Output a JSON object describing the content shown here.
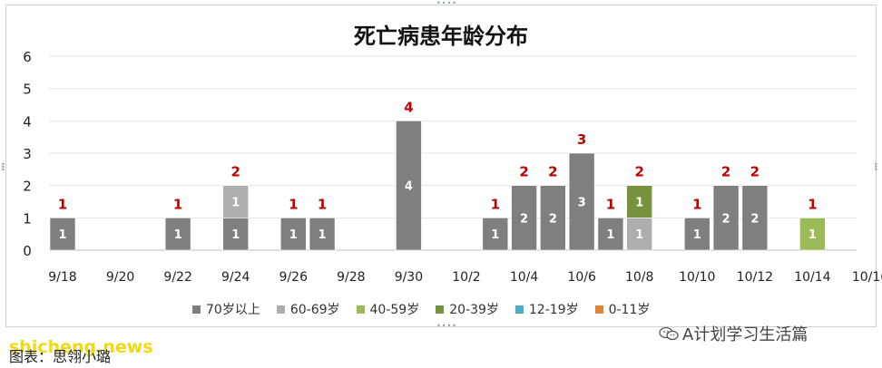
{
  "chart_data": {
    "type": "bar",
    "title": "死亡病患年龄分布",
    "ylim": [
      0,
      6
    ],
    "yticks": [
      "0",
      "1",
      "2",
      "3",
      "4",
      "5",
      "6"
    ],
    "xtick_labels": [
      "9/18",
      "9/20",
      "9/22",
      "9/24",
      "9/26",
      "9/28",
      "9/30",
      "10/2",
      "10/4",
      "10/6",
      "10/8",
      "10/10",
      "10/12",
      "10/14",
      "10/16"
    ],
    "categories": [
      "9/18",
      "9/19",
      "9/20",
      "9/21",
      "9/22",
      "9/23",
      "9/24",
      "9/25",
      "9/26",
      "9/27",
      "9/28",
      "9/29",
      "9/30",
      "10/1",
      "10/2",
      "10/3",
      "10/4",
      "10/5",
      "10/6",
      "10/7",
      "10/8",
      "10/9",
      "10/10",
      "10/11",
      "10/12",
      "10/13",
      "10/14",
      "10/15",
      "10/16"
    ],
    "stacked": true,
    "series": [
      {
        "name": "70岁以上",
        "color": "#7f7f7f",
        "values": [
          1,
          0,
          0,
          0,
          1,
          0,
          1,
          0,
          1,
          1,
          0,
          0,
          4,
          0,
          0,
          1,
          2,
          2,
          3,
          1,
          0,
          0,
          1,
          2,
          2,
          0,
          0,
          0,
          0
        ]
      },
      {
        "name": "60-69岁",
        "color": "#aeaeae",
        "values": [
          0,
          0,
          0,
          0,
          0,
          0,
          1,
          0,
          0,
          0,
          0,
          0,
          0,
          0,
          0,
          0,
          0,
          0,
          0,
          0,
          1,
          0,
          0,
          0,
          0,
          0,
          0,
          0,
          0
        ]
      },
      {
        "name": "40-59岁",
        "color": "#9bbb59",
        "values": [
          0,
          0,
          0,
          0,
          0,
          0,
          0,
          0,
          0,
          0,
          0,
          0,
          0,
          0,
          0,
          0,
          0,
          0,
          0,
          0,
          0,
          0,
          0,
          0,
          0,
          0,
          1,
          0,
          0
        ]
      },
      {
        "name": "20-39岁",
        "color": "#76923c",
        "values": [
          0,
          0,
          0,
          0,
          0,
          0,
          0,
          0,
          0,
          0,
          0,
          0,
          0,
          0,
          0,
          0,
          0,
          0,
          0,
          0,
          1,
          0,
          0,
          0,
          0,
          0,
          0,
          0,
          0
        ]
      },
      {
        "name": "12-19岁",
        "color": "#4bacc6",
        "values": [
          0,
          0,
          0,
          0,
          0,
          0,
          0,
          0,
          0,
          0,
          0,
          0,
          0,
          0,
          0,
          0,
          0,
          0,
          0,
          0,
          0,
          0,
          0,
          0,
          0,
          0,
          0,
          0,
          0
        ]
      },
      {
        "name": "0-11岁",
        "color": "#e0843b",
        "values": [
          0,
          0,
          0,
          0,
          0,
          0,
          0,
          0,
          0,
          0,
          0,
          0,
          0,
          0,
          0,
          0,
          0,
          0,
          0,
          0,
          0,
          0,
          0,
          0,
          0,
          0,
          0,
          0,
          0
        ]
      }
    ],
    "totals": [
      1,
      0,
      0,
      0,
      1,
      0,
      2,
      0,
      1,
      1,
      0,
      0,
      4,
      0,
      0,
      1,
      2,
      2,
      3,
      1,
      2,
      0,
      1,
      2,
      2,
      0,
      1,
      0,
      0
    ],
    "total_label_color": "#c00000",
    "grid": true,
    "legend_position": "bottom"
  },
  "caption": "图表：思翎小璐",
  "brand": "A计划学习生活篇",
  "watermark": "shicheng.news"
}
